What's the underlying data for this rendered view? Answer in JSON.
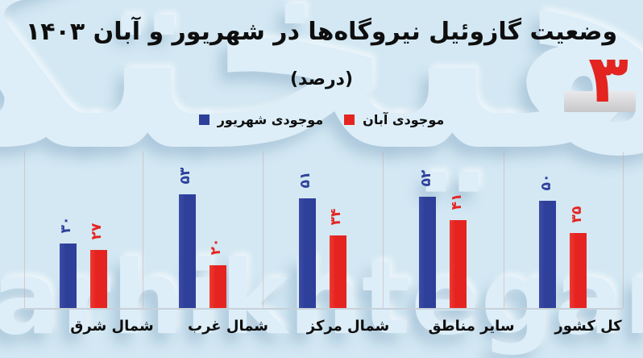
{
  "page": {
    "number_fa": "۳"
  },
  "watermark": {
    "persian": "فرهیختگان",
    "latin": "farhikhtegan"
  },
  "colors": {
    "background": "#d3e8f3",
    "bar_blue": "#2e3f9a",
    "bar_red": "#e52421",
    "page_number_red": "#e32420",
    "title_text": "#0e0e0e",
    "baseline": "#c6d1d9"
  },
  "chart_data": {
    "type": "bar",
    "title": "وضعیت گازوئیل نیروگاه‌ها در شهریور و آبان ۱۴۰۳",
    "subtitle": "(درصد)",
    "unit": "درصد",
    "layout_direction": "rtl",
    "legend_position": "top-center",
    "grid": "vertical-separators-only",
    "ylim": [
      0,
      55
    ],
    "categories": [
      "شمال شرق",
      "شمال غرب",
      "شمال مرکز",
      "سایر مناطق",
      "کل کشور"
    ],
    "series": [
      {
        "name": "موجودی شهریور",
        "color": "#2e3f9a",
        "values": [
          30,
          53,
          51,
          52,
          50
        ],
        "value_labels_fa": [
          "۳۰",
          "۵۳",
          "۵۱",
          "۵۲",
          "۵۰"
        ]
      },
      {
        "name": "موجودی آبان",
        "color": "#e52421",
        "values": [
          27,
          20,
          34,
          41,
          35
        ],
        "value_labels_fa": [
          "۲۷",
          "۲۰",
          "۳۴",
          "۴۱",
          "۳۵"
        ]
      }
    ]
  }
}
